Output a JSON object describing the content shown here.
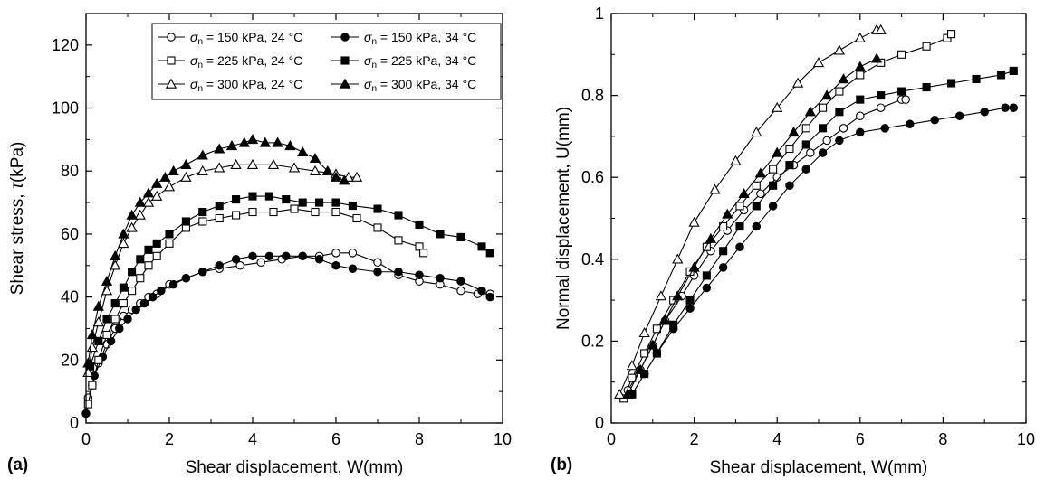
{
  "chart_data": [
    {
      "type": "line",
      "panel_label": "(a)",
      "xlabel": "Shear displacement, W(mm)",
      "ylabel_parts": [
        "Shear stress, ",
        "τ",
        "(kPa)"
      ],
      "xlim": [
        0,
        10
      ],
      "ylim": [
        0,
        130
      ],
      "xticks": [
        0,
        2,
        4,
        6,
        8,
        10
      ],
      "yticks": [
        0,
        20,
        40,
        60,
        80,
        100,
        120
      ],
      "grid": false,
      "legend": {
        "placement": "top-right",
        "entries": [
          {
            "symbol": "σ",
            "sub": "n",
            "text": " = 150 kPa, 24 °C",
            "marker": "circle",
            "fill": "open"
          },
          {
            "symbol": "σ",
            "sub": "n",
            "text": " = 150 kPa, 34 °C",
            "marker": "circle",
            "fill": "filled"
          },
          {
            "symbol": "σ",
            "sub": "n",
            "text": " = 225 kPa, 24 °C",
            "marker": "square",
            "fill": "open"
          },
          {
            "symbol": "σ",
            "sub": "n",
            "text": " = 225 kPa, 34 °C",
            "marker": "square",
            "fill": "filled"
          },
          {
            "symbol": "σ",
            "sub": "n",
            "text": " = 300 kPa, 24 °C",
            "marker": "triangle",
            "fill": "open"
          },
          {
            "symbol": "σ",
            "sub": "n",
            "text": " = 300 kPa, 34 °C",
            "marker": "triangle",
            "fill": "filled"
          }
        ]
      },
      "series": [
        {
          "marker": "circle",
          "fill": "open",
          "x": [
            0.05,
            0.15,
            0.3,
            0.5,
            0.7,
            0.9,
            1.1,
            1.3,
            1.5,
            1.7,
            2.0,
            2.4,
            2.8,
            3.2,
            3.7,
            4.2,
            4.7,
            5.2,
            5.6,
            6.0,
            6.4,
            7.0,
            7.5,
            8.0,
            8.5,
            9.0,
            9.4,
            9.7
          ],
          "y": [
            8,
            12,
            19,
            25,
            30,
            34,
            36,
            38,
            40,
            41,
            44,
            46,
            48,
            49,
            50,
            51,
            52,
            53,
            53,
            54,
            54,
            51,
            47,
            45,
            44,
            42,
            41,
            41
          ]
        },
        {
          "marker": "circle",
          "fill": "filled",
          "x": [
            0.0,
            0.2,
            0.4,
            0.6,
            0.8,
            1.0,
            1.2,
            1.4,
            1.6,
            1.8,
            2.1,
            2.4,
            2.8,
            3.2,
            3.6,
            4.0,
            4.4,
            4.8,
            5.2,
            5.6,
            6.0,
            6.4,
            7.0,
            7.5,
            8.0,
            8.5,
            9.0,
            9.5,
            9.7
          ],
          "y": [
            3,
            15,
            21,
            26,
            30,
            33,
            36,
            38,
            40,
            42,
            44,
            46,
            48,
            50,
            52,
            53,
            53,
            53,
            53,
            52,
            50,
            49,
            48,
            48,
            47,
            46,
            45,
            42,
            40
          ]
        },
        {
          "marker": "square",
          "fill": "open",
          "x": [
            0.05,
            0.15,
            0.3,
            0.5,
            0.7,
            0.9,
            1.1,
            1.3,
            1.5,
            1.7,
            2.0,
            2.4,
            2.8,
            3.2,
            3.6,
            4.0,
            4.5,
            5.0,
            5.5,
            6.0,
            6.5,
            7.0,
            7.5,
            8.0,
            8.1
          ],
          "y": [
            6,
            12,
            20,
            28,
            33,
            38,
            42,
            46,
            50,
            53,
            57,
            62,
            64,
            65,
            66,
            67,
            67,
            68,
            67,
            67,
            65,
            62,
            58,
            56,
            54
          ]
        },
        {
          "marker": "square",
          "fill": "filled",
          "x": [
            0.1,
            0.3,
            0.5,
            0.7,
            0.9,
            1.1,
            1.3,
            1.5,
            1.7,
            2.0,
            2.4,
            2.8,
            3.2,
            3.6,
            4.0,
            4.4,
            4.8,
            5.2,
            5.6,
            6.0,
            6.4,
            7.0,
            7.5,
            8.0,
            8.5,
            9.0,
            9.5,
            9.7
          ],
          "y": [
            18,
            26,
            33,
            38,
            43,
            48,
            52,
            55,
            57,
            60,
            64,
            67,
            69,
            71,
            72,
            72,
            71,
            70,
            70,
            70,
            69,
            68,
            66,
            63,
            60,
            59,
            56,
            54
          ]
        },
        {
          "marker": "triangle",
          "fill": "open",
          "x": [
            0.05,
            0.15,
            0.3,
            0.5,
            0.7,
            0.9,
            1.1,
            1.3,
            1.5,
            1.7,
            2.0,
            2.4,
            2.8,
            3.2,
            3.6,
            4.0,
            4.5,
            5.0,
            5.5,
            6.0,
            6.3,
            6.5
          ],
          "y": [
            16,
            24,
            32,
            42,
            50,
            57,
            62,
            66,
            70,
            72,
            75,
            78,
            80,
            81,
            82,
            82,
            82,
            81,
            80,
            79,
            78,
            78
          ]
        },
        {
          "marker": "triangle",
          "fill": "filled",
          "x": [
            0.05,
            0.15,
            0.3,
            0.5,
            0.7,
            0.9,
            1.1,
            1.3,
            1.5,
            1.7,
            1.9,
            2.1,
            2.4,
            2.8,
            3.2,
            3.5,
            3.8,
            4.0,
            4.3,
            4.6,
            4.9,
            5.2,
            5.5,
            5.8,
            6.0,
            6.2
          ],
          "y": [
            19,
            28,
            37,
            45,
            53,
            60,
            66,
            70,
            73,
            76,
            78,
            80,
            82,
            85,
            87,
            88,
            89,
            90,
            89,
            89,
            88,
            86,
            84,
            80,
            78,
            77
          ]
        }
      ]
    },
    {
      "type": "line",
      "panel_label": "(b)",
      "xlabel": "Shear displacement, W(mm)",
      "ylabel": "Normal displacement, U(mm)",
      "xlim": [
        0,
        10
      ],
      "ylim": [
        0,
        1
      ],
      "xticks": [
        0,
        2,
        4,
        6,
        8,
        10
      ],
      "yticks": [
        0,
        0.2,
        0.4,
        0.6,
        0.8,
        1
      ],
      "ytick_labels": [
        "0",
        "0.2",
        "0.4",
        "0.6",
        "0.8",
        "1"
      ],
      "grid": false,
      "series": [
        {
          "marker": "circle",
          "fill": "open",
          "x": [
            0.4,
            0.7,
            1.0,
            1.3,
            1.7,
            2.0,
            2.4,
            2.8,
            3.2,
            3.6,
            4.0,
            4.4,
            4.8,
            5.2,
            5.6,
            6.0,
            6.5,
            7.0,
            7.1
          ],
          "y": [
            0.08,
            0.13,
            0.19,
            0.25,
            0.31,
            0.36,
            0.42,
            0.47,
            0.52,
            0.56,
            0.6,
            0.63,
            0.66,
            0.69,
            0.72,
            0.75,
            0.77,
            0.79,
            0.79
          ]
        },
        {
          "marker": "circle",
          "fill": "filled",
          "x": [
            0.5,
            0.8,
            1.1,
            1.5,
            1.9,
            2.3,
            2.7,
            3.1,
            3.5,
            3.9,
            4.3,
            4.7,
            5.1,
            5.5,
            6.0,
            6.6,
            7.2,
            7.8,
            8.4,
            9.0,
            9.5,
            9.7
          ],
          "y": [
            0.07,
            0.12,
            0.17,
            0.23,
            0.28,
            0.33,
            0.38,
            0.43,
            0.48,
            0.53,
            0.58,
            0.62,
            0.66,
            0.69,
            0.71,
            0.72,
            0.73,
            0.74,
            0.75,
            0.76,
            0.77,
            0.77
          ]
        },
        {
          "marker": "square",
          "fill": "open",
          "x": [
            0.3,
            0.5,
            0.8,
            1.1,
            1.5,
            1.9,
            2.3,
            2.7,
            3.1,
            3.5,
            3.9,
            4.3,
            4.7,
            5.1,
            5.5,
            6.0,
            6.5,
            7.0,
            7.6,
            8.1,
            8.2
          ],
          "y": [
            0.06,
            0.11,
            0.17,
            0.23,
            0.3,
            0.37,
            0.43,
            0.48,
            0.53,
            0.58,
            0.62,
            0.67,
            0.72,
            0.77,
            0.81,
            0.85,
            0.88,
            0.9,
            0.92,
            0.94,
            0.95
          ]
        },
        {
          "marker": "square",
          "fill": "filled",
          "x": [
            0.5,
            0.8,
            1.1,
            1.5,
            1.9,
            2.3,
            2.7,
            3.1,
            3.5,
            3.9,
            4.3,
            4.7,
            5.1,
            5.5,
            6.0,
            6.5,
            7.0,
            7.6,
            8.2,
            8.8,
            9.4,
            9.7
          ],
          "y": [
            0.07,
            0.12,
            0.17,
            0.24,
            0.3,
            0.36,
            0.42,
            0.48,
            0.53,
            0.58,
            0.63,
            0.68,
            0.72,
            0.76,
            0.79,
            0.8,
            0.81,
            0.82,
            0.83,
            0.84,
            0.85,
            0.86
          ]
        },
        {
          "marker": "triangle",
          "fill": "open",
          "x": [
            0.2,
            0.5,
            0.8,
            1.2,
            1.6,
            2.0,
            2.5,
            3.0,
            3.5,
            4.0,
            4.5,
            5.0,
            5.5,
            6.0,
            6.4,
            6.5
          ],
          "y": [
            0.07,
            0.14,
            0.22,
            0.31,
            0.4,
            0.49,
            0.57,
            0.64,
            0.71,
            0.77,
            0.83,
            0.88,
            0.91,
            0.94,
            0.96,
            0.96
          ]
        },
        {
          "marker": "triangle",
          "fill": "filled",
          "x": [
            0.4,
            0.7,
            1.0,
            1.3,
            1.6,
            2.0,
            2.4,
            2.8,
            3.2,
            3.6,
            4.0,
            4.4,
            4.8,
            5.2,
            5.6,
            6.0,
            6.4
          ],
          "y": [
            0.07,
            0.13,
            0.19,
            0.25,
            0.31,
            0.38,
            0.45,
            0.51,
            0.56,
            0.61,
            0.66,
            0.71,
            0.76,
            0.8,
            0.84,
            0.87,
            0.89
          ]
        }
      ]
    }
  ]
}
